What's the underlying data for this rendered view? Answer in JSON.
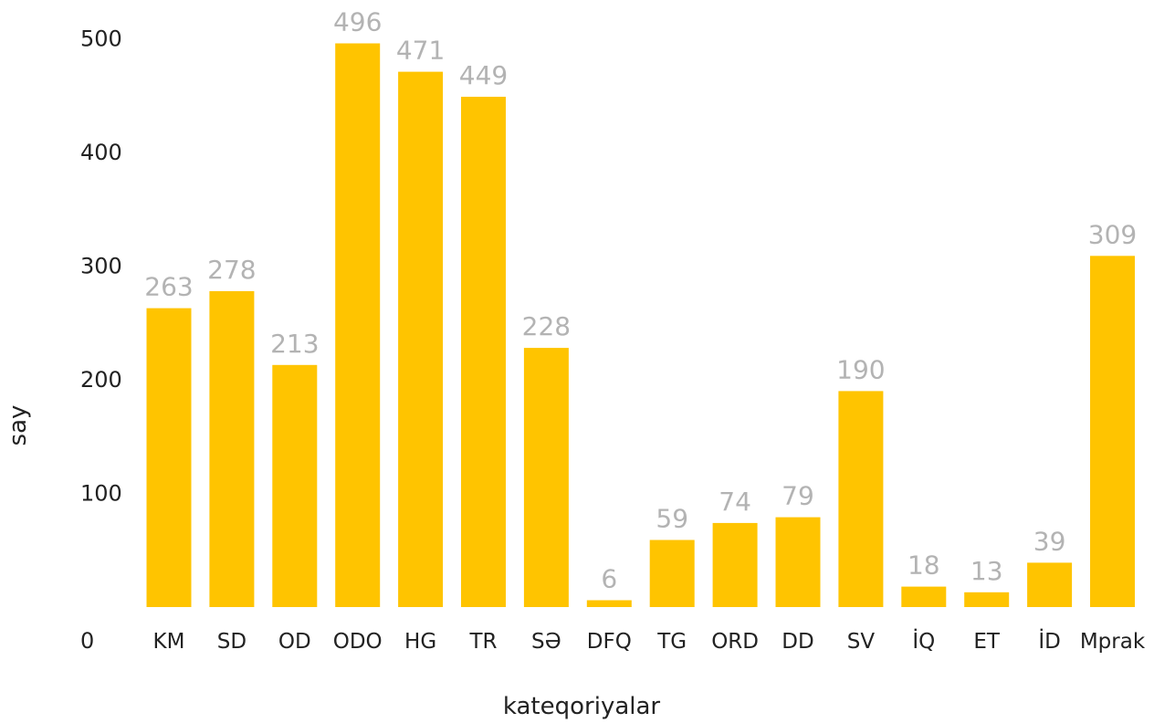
{
  "chart_data": {
    "type": "bar",
    "categories": [
      "KM",
      "SD",
      "OD",
      "ODO",
      "HG",
      "TR",
      "SƏ",
      "DFQ",
      "TG",
      "ORD",
      "DD",
      "SV",
      "İQ",
      "ET",
      "İD",
      "Mprak"
    ],
    "values": [
      263,
      278,
      213,
      496,
      471,
      449,
      228,
      6,
      59,
      74,
      79,
      190,
      18,
      13,
      39,
      309
    ],
    "data_labels": [
      "263",
      "278",
      "213",
      "496",
      "471",
      "449",
      "228",
      "6",
      "59",
      "74",
      "79",
      "190",
      "18",
      "13",
      "39",
      "309"
    ],
    "xlabel": "kateqoriyalar",
    "ylabel": "say",
    "ylim": [
      0,
      500
    ],
    "yticks": [
      "0",
      "100",
      "200",
      "300",
      "400",
      "500"
    ],
    "grid": false,
    "legend": "none",
    "colors": {
      "bar": "#FFC400",
      "data_label": "#B3B3B3",
      "text": "#222222"
    }
  }
}
